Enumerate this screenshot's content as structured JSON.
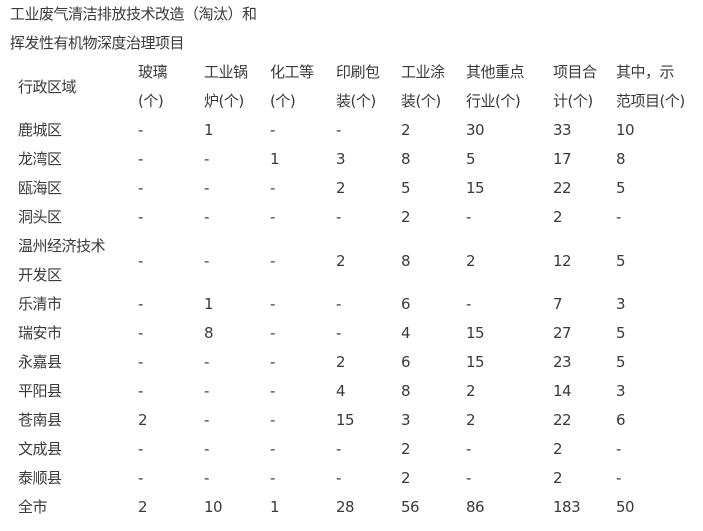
{
  "title": {
    "line1": "工业废气清洁排放技术改造（淘汰）和",
    "line2": "挥发性有机物深度治理项目"
  },
  "table": {
    "headers": [
      [
        "行政区域"
      ],
      [
        "玻璃",
        "(个)"
      ],
      [
        "工业锅",
        "炉(个)"
      ],
      [
        "化工等",
        "(个)"
      ],
      [
        "印刷包",
        "装(个)"
      ],
      [
        "工业涂",
        "装(个)"
      ],
      [
        "其他重点",
        "行业(个)"
      ],
      [
        "项目合",
        "计(个)"
      ],
      [
        "其中，示",
        "范项目(个)"
      ]
    ],
    "rows": [
      [
        [
          "鹿城区"
        ],
        "-",
        "1",
        "-",
        "-",
        "2",
        "30",
        "33",
        "10"
      ],
      [
        [
          "龙湾区"
        ],
        "-",
        "-",
        "1",
        "3",
        "8",
        "5",
        "17",
        "8"
      ],
      [
        [
          "瓯海区"
        ],
        "-",
        "-",
        "-",
        "2",
        "5",
        "15",
        "22",
        "5"
      ],
      [
        [
          "洞头区"
        ],
        "-",
        "-",
        "-",
        "-",
        "2",
        "-",
        "2",
        "-"
      ],
      [
        [
          "温州经济技术",
          "开发区"
        ],
        "-",
        "-",
        "-",
        "2",
        "8",
        "2",
        "12",
        "5"
      ],
      [
        [
          "乐清市"
        ],
        "-",
        "1",
        "-",
        "-",
        "6",
        "-",
        "7",
        "3"
      ],
      [
        [
          "瑞安市"
        ],
        "-",
        "8",
        "-",
        "-",
        "4",
        "15",
        "27",
        "5"
      ],
      [
        [
          "永嘉县"
        ],
        "-",
        "-",
        "-",
        "2",
        "6",
        "15",
        "23",
        "5"
      ],
      [
        [
          "平阳县"
        ],
        "-",
        "-",
        "-",
        "4",
        "8",
        "2",
        "14",
        "3"
      ],
      [
        [
          "苍南县"
        ],
        "2",
        "-",
        "-",
        "15",
        "3",
        "2",
        "22",
        "6"
      ],
      [
        [
          "文成县"
        ],
        "-",
        "-",
        "-",
        "-",
        "2",
        "-",
        "2",
        "-"
      ],
      [
        [
          "泰顺县"
        ],
        "-",
        "-",
        "-",
        "-",
        "2",
        "-",
        "2",
        "-"
      ],
      [
        [
          "全市"
        ],
        "2",
        "10",
        "1",
        "28",
        "56",
        "86",
        "183",
        "50"
      ]
    ]
  }
}
